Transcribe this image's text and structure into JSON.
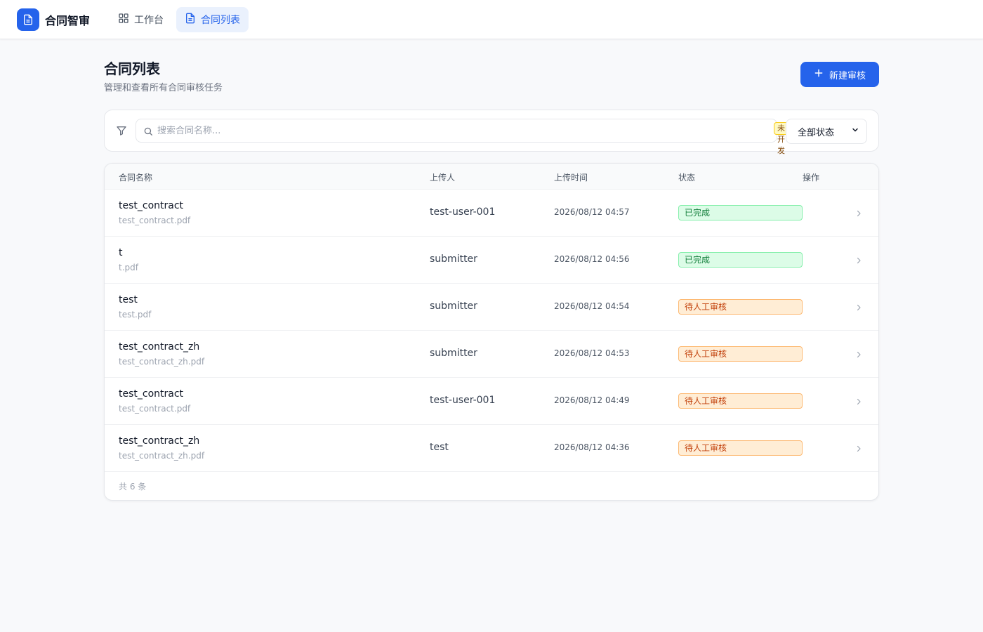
{
  "app": {
    "name": "合同智审"
  },
  "nav": [
    {
      "label": "工作台",
      "icon": "grid-icon",
      "active": false
    },
    {
      "label": "合同列表",
      "icon": "document-icon",
      "active": true
    }
  ],
  "page": {
    "title": "合同列表",
    "subtitle": "管理和查看所有合同审核任务",
    "new_button_label": "新建审核"
  },
  "filter": {
    "search_placeholder": "搜索合同名称...",
    "search_value": "",
    "badge": "未开发",
    "status_selected": "全部状态"
  },
  "table": {
    "columns": [
      "合同名称",
      "上传人",
      "上传时间",
      "状态",
      "操作"
    ],
    "rows": [
      {
        "name": "test_contract",
        "file": "test_contract.pdf",
        "uploader": "test-user-001",
        "time": "2026/08/12 04:57",
        "status": "已完成",
        "status_type": "done"
      },
      {
        "name": "t",
        "file": "t.pdf",
        "uploader": "submitter",
        "time": "2026/08/12 04:56",
        "status": "已完成",
        "status_type": "done"
      },
      {
        "name": "test",
        "file": "test.pdf",
        "uploader": "submitter",
        "time": "2026/08/12 04:54",
        "status": "待人工审核",
        "status_type": "pending"
      },
      {
        "name": "test_contract_zh",
        "file": "test_contract_zh.pdf",
        "uploader": "submitter",
        "time": "2026/08/12 04:53",
        "status": "待人工审核",
        "status_type": "pending"
      },
      {
        "name": "test_contract",
        "file": "test_contract.pdf",
        "uploader": "test-user-001",
        "time": "2026/08/12 04:49",
        "status": "待人工审核",
        "status_type": "pending"
      },
      {
        "name": "test_contract_zh",
        "file": "test_contract_zh.pdf",
        "uploader": "test",
        "time": "2026/08/12 04:36",
        "status": "待人工审核",
        "status_type": "pending"
      }
    ],
    "footer": "共 6 条"
  },
  "colors": {
    "accent": "#2563eb",
    "status_done": "#15803d",
    "status_pending": "#c2410c"
  }
}
